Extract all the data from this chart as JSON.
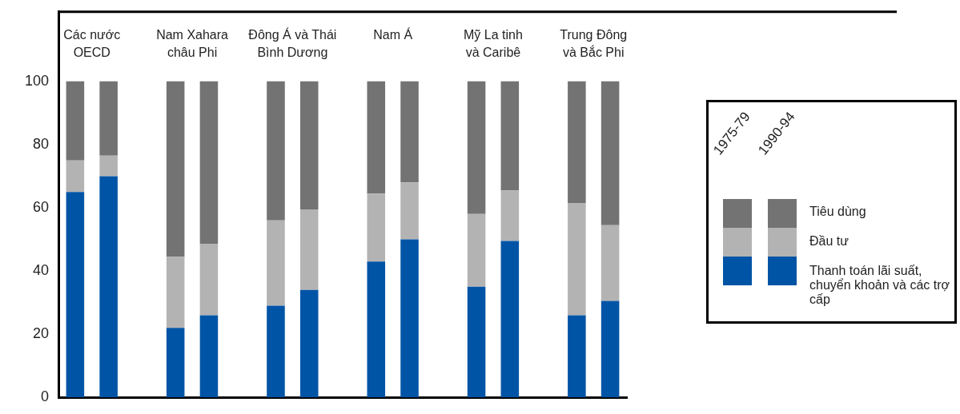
{
  "chart_data": {
    "type": "bar",
    "stacked": true,
    "categories": [
      "Các nước\nOECD",
      null,
      null,
      "Nam Xahara\nchâu Phi",
      null,
      null,
      "Đông Á và Thái\nBình Dương",
      null,
      null,
      "Nam Á",
      null,
      null,
      "Mỹ La tinh\nvà Caribê",
      null,
      null,
      "Trung Đông\nvà Bắc Phi",
      null
    ],
    "series": [
      {
        "name": "Thanh toán lãi suất, chuyển khoản và các trợ cấp",
        "color": "#0054a6",
        "values": [
          65,
          70,
          null,
          22,
          26,
          null,
          29,
          34,
          null,
          43,
          50,
          null,
          35,
          49.5,
          null,
          26,
          30.5
        ]
      },
      {
        "name": "Đầu tư",
        "color": "#b3b3b3",
        "values": [
          10,
          6.5,
          null,
          22.5,
          22.5,
          null,
          27,
          25.5,
          null,
          21.5,
          18,
          null,
          23,
          16,
          null,
          35.5,
          24
        ]
      },
      {
        "name": "Tiêu dùng",
        "color": "#737373",
        "values": [
          25,
          23.5,
          null,
          55.5,
          51.5,
          null,
          44,
          40.5,
          null,
          35.5,
          32,
          null,
          42,
          34.5,
          null,
          38.5,
          45.5
        ]
      }
    ],
    "annotations": [
      "1975-79",
      "1990-94"
    ],
    "ylim": [
      0,
      122
    ],
    "yticks": [
      0,
      20,
      40,
      60,
      80,
      100
    ],
    "grid": false,
    "legend": "right"
  }
}
